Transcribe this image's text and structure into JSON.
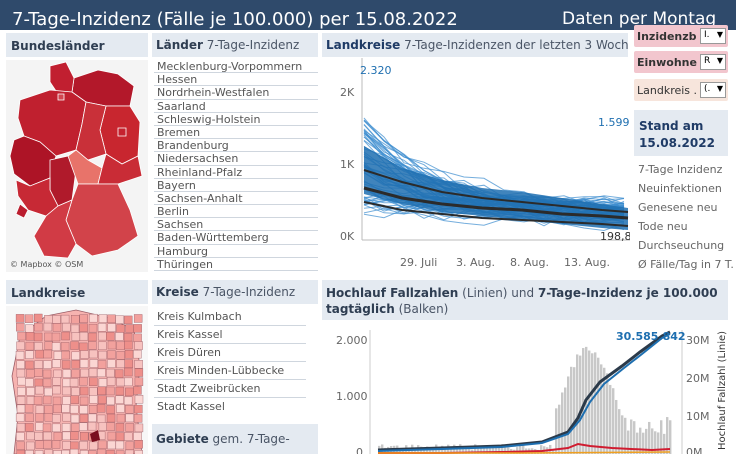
{
  "header": {
    "title": "7-Tage-Inzidenz (Fälle je 100.000) per 15.08.2022",
    "right": "Daten per Montag"
  },
  "bundeslaender": {
    "title": "Bundesländer",
    "map_credits": "© Mapbox  © OSM"
  },
  "laender": {
    "title": "Länder",
    "subtitle": "7-Tage-Inzidenz",
    "items": [
      "Mecklenburg-Vorpommern",
      "Hessen",
      "Nordrhein-Westfalen",
      "Saarland",
      "Schleswig-Holstein",
      "Bremen",
      "Brandenburg",
      "Niedersachsen",
      "Rheinland-Pfalz",
      "Bayern",
      "Sachsen-Anhalt",
      "Berlin",
      "Sachsen",
      "Baden-Württemberg",
      "Hamburg",
      "Thüringen"
    ]
  },
  "landkreise_chart": {
    "title": "Landkreise",
    "subtitle": "7-Tage-Inzidenzen der letzten 3 Wochen",
    "y_ticks": [
      "2K",
      "1K",
      "0K"
    ],
    "x_ticks": [
      "29. Juli",
      "3. Aug.",
      "8. Aug.",
      "13. Aug."
    ],
    "labels": [
      "2.320",
      "1.599",
      "198,8"
    ]
  },
  "filters": [
    {
      "label": "Inzidenzb...",
      "value": "I.",
      "color": "#f2c6ce"
    },
    {
      "label": "Einwohne...",
      "value": "R",
      "color": "#f2c6ce"
    },
    {
      "label": "Landkreis ...",
      "value": "(.",
      "color": "#f7e5dc"
    }
  ],
  "stand": {
    "line1": "Stand am",
    "line2": "15.08.2022"
  },
  "metrics": [
    "7-Tage Inzidenz",
    "Neuinfektionen",
    "Genesene neu",
    "Tode neu",
    "Durchseuchung",
    "Ø Fälle/Tag in 7 T."
  ],
  "landkreise": {
    "title": "Landkreise"
  },
  "kreise": {
    "title": "Kreise",
    "subtitle": "7-Tage-Inzidenz",
    "items": [
      "Kreis Kulmbach",
      "Kreis Kassel",
      "Kreis Düren",
      "Kreis Minden-Lübbecke",
      "Stadt Zweibrücken",
      "Stadt Kassel"
    ]
  },
  "gebiete": {
    "title": "Gebiete",
    "subtitle": "gem. 7-Tage-"
  },
  "hochlauf": {
    "title_a": "Hochlauf Fallzahlen",
    "title_b": "(Linien) und",
    "title_c": "7-Tage-Inzidenz je 100.000 tagtäglich",
    "title_d": "(Balken)",
    "y_left": [
      "2.000",
      "1.000",
      "0"
    ],
    "y_right": [
      "30M",
      "20M",
      "10M",
      "0M"
    ],
    "y_right_label": "Hochlauf Fallzahl (Linie)",
    "end_label": "30.585.842"
  },
  "colors": {
    "header": "#2f4a6b",
    "accent": "#1f6fb0",
    "panel": "#e4eaf1"
  }
}
